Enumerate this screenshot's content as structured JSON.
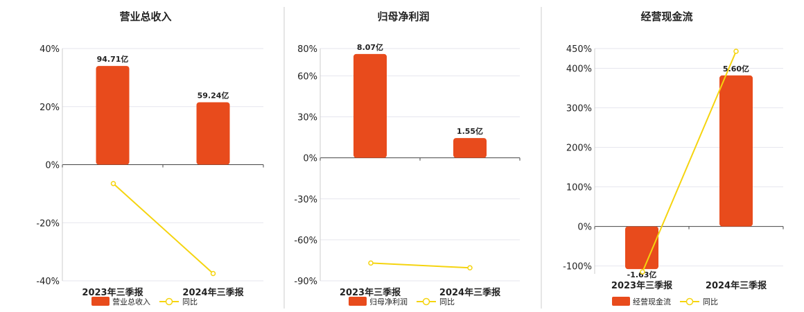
{
  "chart_data": [
    {
      "type": "bar",
      "title": "营业总收入",
      "categories": [
        "2023年三季报",
        "2024年三季报"
      ],
      "y_ticks": [
        "40%",
        "20%",
        "0%",
        "-20%",
        "-40%"
      ],
      "ylim": [
        -40,
        40
      ],
      "series": [
        {
          "name": "营业总收入",
          "type": "bar",
          "values": [
            34,
            21.5
          ],
          "labels": [
            "94.71亿",
            "59.24亿"
          ]
        },
        {
          "name": "同比",
          "type": "line",
          "values": [
            -6.5,
            -37.5
          ]
        }
      ],
      "legend": "bottom-center",
      "colors": {
        "bar": "#e84b1c",
        "line": "#f5d40f"
      }
    },
    {
      "type": "bar",
      "title": "归母净利润",
      "categories": [
        "2023年三季报",
        "2024年三季报"
      ],
      "y_ticks": [
        "80%",
        "60%",
        "30%",
        "0%",
        "-30%",
        "-60%",
        "-90%"
      ],
      "ylim": [
        -90,
        80
      ],
      "series": [
        {
          "name": "归母净利润",
          "type": "bar",
          "values": [
            76,
            14.5
          ],
          "labels": [
            "8.07亿",
            "1.55亿"
          ]
        },
        {
          "name": "同比",
          "type": "line",
          "values": [
            -77,
            -80.5
          ]
        }
      ],
      "legend": "bottom-center",
      "colors": {
        "bar": "#e84b1c",
        "line": "#f5d40f"
      }
    },
    {
      "type": "bar",
      "title": "经营现金流",
      "categories": [
        "2023年三季报",
        "2024年三季报"
      ],
      "y_ticks": [
        "450%",
        "400%",
        "300%",
        "200%",
        "100%",
        "0%",
        "-100%"
      ],
      "ylim": [
        -120,
        450
      ],
      "series": [
        {
          "name": "经营现金流",
          "type": "bar",
          "values": [
            -108,
            382
          ],
          "labels": [
            "-1.63亿",
            "5.60亿"
          ]
        },
        {
          "name": "同比",
          "type": "line",
          "values": [
            -115,
            443
          ]
        }
      ],
      "legend": "bottom-center",
      "colors": {
        "bar": "#e84b1c",
        "line": "#f5d40f"
      }
    }
  ]
}
